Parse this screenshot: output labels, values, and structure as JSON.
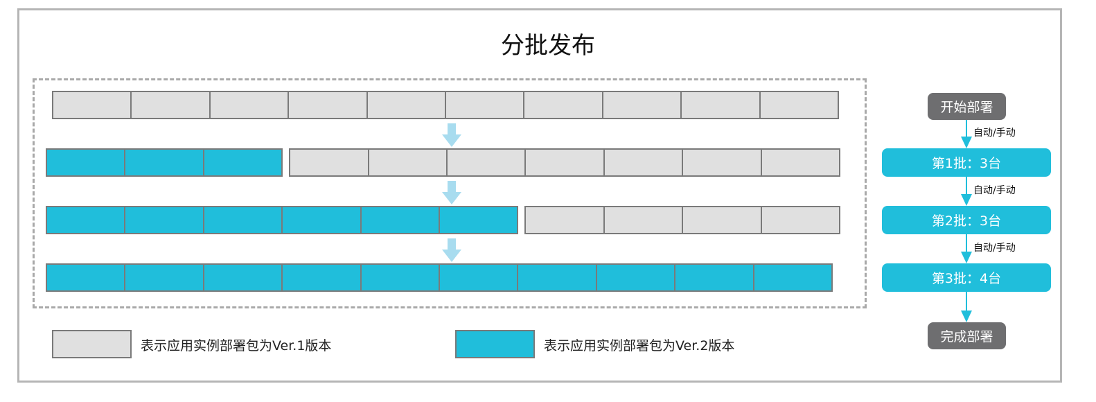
{
  "title": "分批发布",
  "total_instances": 10,
  "rows": [
    {
      "v2_count": 0
    },
    {
      "v2_count": 3
    },
    {
      "v2_count": 6
    },
    {
      "v2_count": 10
    }
  ],
  "legend": {
    "v1": "表示应用实例部署包为Ver.1版本",
    "v2": "表示应用实例部署包为Ver.2版本"
  },
  "flow": {
    "start": "开始部署",
    "transition": "自动/手动",
    "batches": [
      "第1批：3台",
      "第2批：3台",
      "第3批：4台"
    ],
    "end": "完成部署"
  },
  "colors": {
    "v1": "#e0e0e0",
    "v2": "#20bedb",
    "arrow_light": "#a8dcef",
    "node_gray": "#6e6e70"
  }
}
